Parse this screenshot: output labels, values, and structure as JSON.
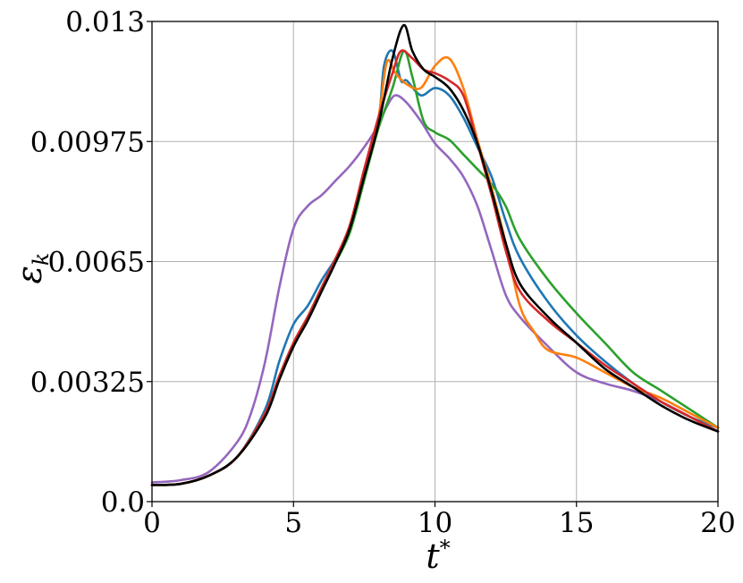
{
  "chart_data": {
    "type": "line",
    "title": "",
    "xlabel": "t*",
    "ylabel": "εk",
    "xlim": [
      0,
      20
    ],
    "ylim": [
      0.0,
      0.013
    ],
    "grid": true,
    "legend": "none",
    "x_ticks": [
      {
        "value": 0,
        "label": "0"
      },
      {
        "value": 5,
        "label": "5"
      },
      {
        "value": 10,
        "label": "10"
      },
      {
        "value": 15,
        "label": "15"
      },
      {
        "value": 20,
        "label": "20"
      }
    ],
    "y_ticks": [
      {
        "value": 0.0,
        "label": "0.0"
      },
      {
        "value": 0.00325,
        "label": "0.00325"
      },
      {
        "value": 0.0065,
        "label": "0.0065"
      },
      {
        "value": 0.00975,
        "label": "0.00975"
      },
      {
        "value": 0.013,
        "label": "0.013"
      }
    ],
    "series": [
      {
        "color": "#9467bd",
        "points": [
          [
            0,
            0.00052
          ],
          [
            1,
            0.00058
          ],
          [
            2,
            0.0008
          ],
          [
            3,
            0.0016
          ],
          [
            3.5,
            0.0024
          ],
          [
            4,
            0.0038
          ],
          [
            4.5,
            0.0058
          ],
          [
            5,
            0.0074
          ],
          [
            5.5,
            0.008
          ],
          [
            6,
            0.0083
          ],
          [
            6.5,
            0.0087
          ],
          [
            7,
            0.0091
          ],
          [
            7.5,
            0.0096
          ],
          [
            8,
            0.0102
          ],
          [
            8.3,
            0.0107
          ],
          [
            8.6,
            0.011
          ],
          [
            9,
            0.0108
          ],
          [
            9.5,
            0.0103
          ],
          [
            10,
            0.0097
          ],
          [
            10.5,
            0.0093
          ],
          [
            11,
            0.0088
          ],
          [
            11.5,
            0.008
          ],
          [
            12,
            0.0068
          ],
          [
            12.5,
            0.0056
          ],
          [
            13,
            0.005
          ],
          [
            14,
            0.0042
          ],
          [
            15,
            0.0035
          ],
          [
            16,
            0.0032
          ],
          [
            17,
            0.003
          ],
          [
            18,
            0.0027
          ],
          [
            19,
            0.0023
          ],
          [
            20,
            0.0019
          ]
        ]
      },
      {
        "color": "#1f77b4",
        "points": [
          [
            0,
            0.00045
          ],
          [
            1,
            0.00048
          ],
          [
            2,
            0.0007
          ],
          [
            3,
            0.0012
          ],
          [
            4,
            0.0025
          ],
          [
            4.5,
            0.0038
          ],
          [
            5,
            0.0048
          ],
          [
            5.5,
            0.0053
          ],
          [
            6,
            0.006
          ],
          [
            6.5,
            0.0066
          ],
          [
            7,
            0.0074
          ],
          [
            7.5,
            0.0089
          ],
          [
            8,
            0.0103
          ],
          [
            8.2,
            0.0118
          ],
          [
            8.5,
            0.0122
          ],
          [
            8.8,
            0.0114
          ],
          [
            9,
            0.0114
          ],
          [
            9.5,
            0.011
          ],
          [
            10,
            0.0112
          ],
          [
            10.5,
            0.011
          ],
          [
            11,
            0.0104
          ],
          [
            11.5,
            0.0096
          ],
          [
            12,
            0.0088
          ],
          [
            12.5,
            0.0076
          ],
          [
            13,
            0.0066
          ],
          [
            14,
            0.0054
          ],
          [
            15,
            0.0045
          ],
          [
            16,
            0.0038
          ],
          [
            17,
            0.0032
          ],
          [
            18,
            0.0027
          ],
          [
            19,
            0.0023
          ],
          [
            20,
            0.002
          ]
        ]
      },
      {
        "color": "#2ca02c",
        "points": [
          [
            0,
            0.00045
          ],
          [
            1,
            0.00048
          ],
          [
            2,
            0.0007
          ],
          [
            3,
            0.0012
          ],
          [
            4,
            0.0024
          ],
          [
            4.5,
            0.0034
          ],
          [
            5,
            0.0043
          ],
          [
            5.5,
            0.005
          ],
          [
            6,
            0.0058
          ],
          [
            6.5,
            0.0065
          ],
          [
            7,
            0.0073
          ],
          [
            7.5,
            0.0087
          ],
          [
            8,
            0.0101
          ],
          [
            8.5,
            0.0112
          ],
          [
            8.9,
            0.0122
          ],
          [
            9.2,
            0.0115
          ],
          [
            9.6,
            0.0103
          ],
          [
            10,
            0.01
          ],
          [
            10.5,
            0.0098
          ],
          [
            11,
            0.0094
          ],
          [
            11.5,
            0.009
          ],
          [
            12,
            0.0086
          ],
          [
            12.5,
            0.008
          ],
          [
            13,
            0.0071
          ],
          [
            14,
            0.006
          ],
          [
            15,
            0.0051
          ],
          [
            16,
            0.0043
          ],
          [
            17,
            0.0035
          ],
          [
            18,
            0.003
          ],
          [
            19,
            0.0025
          ],
          [
            20,
            0.002
          ]
        ]
      },
      {
        "color": "#ff7f0e",
        "points": [
          [
            0,
            0.00045
          ],
          [
            1,
            0.00048
          ],
          [
            2,
            0.0007
          ],
          [
            3,
            0.0012
          ],
          [
            4,
            0.0024
          ],
          [
            4.5,
            0.0034
          ],
          [
            5,
            0.0043
          ],
          [
            5.5,
            0.005
          ],
          [
            6,
            0.0058
          ],
          [
            6.5,
            0.0066
          ],
          [
            7,
            0.0075
          ],
          [
            7.5,
            0.009
          ],
          [
            8,
            0.0104
          ],
          [
            8.3,
            0.0119
          ],
          [
            8.6,
            0.0116
          ],
          [
            9,
            0.0113
          ],
          [
            9.5,
            0.0112
          ],
          [
            10,
            0.0118
          ],
          [
            10.5,
            0.012
          ],
          [
            11,
            0.0112
          ],
          [
            11.5,
            0.0098
          ],
          [
            12,
            0.0085
          ],
          [
            12.5,
            0.007
          ],
          [
            13,
            0.0053
          ],
          [
            13.5,
            0.0046
          ],
          [
            14,
            0.0041
          ],
          [
            15,
            0.0039
          ],
          [
            16,
            0.0035
          ],
          [
            17,
            0.0031
          ],
          [
            18,
            0.0028
          ],
          [
            19,
            0.0024
          ],
          [
            20,
            0.002
          ]
        ]
      },
      {
        "color": "#d62728",
        "points": [
          [
            0,
            0.00045
          ],
          [
            1,
            0.00048
          ],
          [
            2,
            0.0007
          ],
          [
            3,
            0.0012
          ],
          [
            4,
            0.0024
          ],
          [
            4.5,
            0.0034
          ],
          [
            5,
            0.0043
          ],
          [
            5.5,
            0.005
          ],
          [
            6,
            0.0058
          ],
          [
            6.5,
            0.0066
          ],
          [
            7,
            0.0075
          ],
          [
            7.5,
            0.009
          ],
          [
            8,
            0.0104
          ],
          [
            8.5,
            0.0116
          ],
          [
            8.8,
            0.0122
          ],
          [
            9.2,
            0.012
          ],
          [
            9.6,
            0.0117
          ],
          [
            10,
            0.0116
          ],
          [
            10.5,
            0.0114
          ],
          [
            11,
            0.011
          ],
          [
            11.5,
            0.0097
          ],
          [
            12,
            0.0083
          ],
          [
            12.5,
            0.0068
          ],
          [
            13,
            0.0057
          ],
          [
            14,
            0.0049
          ],
          [
            15,
            0.0043
          ],
          [
            16,
            0.0037
          ],
          [
            17,
            0.0032
          ],
          [
            18,
            0.0027
          ],
          [
            19,
            0.0023
          ],
          [
            20,
            0.0019
          ]
        ]
      },
      {
        "color": "#000000",
        "points": [
          [
            0,
            0.00045
          ],
          [
            1,
            0.00048
          ],
          [
            2,
            0.0007
          ],
          [
            3,
            0.0012
          ],
          [
            4,
            0.0023
          ],
          [
            4.5,
            0.0033
          ],
          [
            5,
            0.0042
          ],
          [
            5.5,
            0.0049
          ],
          [
            6,
            0.0057
          ],
          [
            6.5,
            0.0065
          ],
          [
            7,
            0.0074
          ],
          [
            7.5,
            0.0088
          ],
          [
            8,
            0.0102
          ],
          [
            8.5,
            0.012
          ],
          [
            8.9,
            0.0129
          ],
          [
            9.2,
            0.0122
          ],
          [
            9.6,
            0.0117
          ],
          [
            10,
            0.0115
          ],
          [
            10.5,
            0.0112
          ],
          [
            11,
            0.0106
          ],
          [
            11.5,
            0.0097
          ],
          [
            12,
            0.0084
          ],
          [
            12.5,
            0.007
          ],
          [
            13,
            0.0059
          ],
          [
            14,
            0.005
          ],
          [
            15,
            0.0043
          ],
          [
            16,
            0.0036
          ],
          [
            17,
            0.0031
          ],
          [
            18,
            0.0026
          ],
          [
            19,
            0.0022
          ],
          [
            20,
            0.0019
          ]
        ]
      }
    ]
  }
}
